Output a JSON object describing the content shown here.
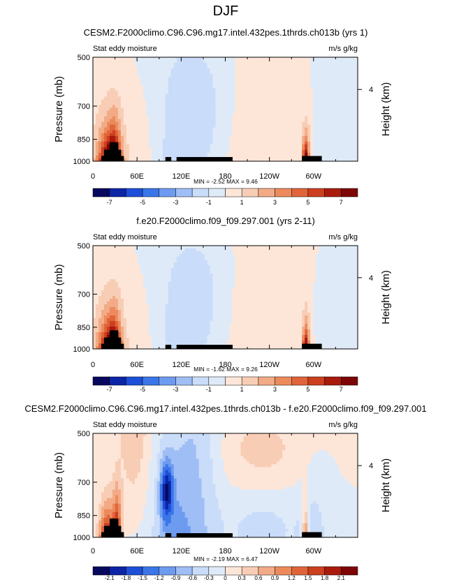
{
  "figure": {
    "title": "DJF"
  },
  "colors": {
    "neg": [
      "#08085e",
      "#0c24a6",
      "#1d4fd8",
      "#3a76e8",
      "#6d9bf0",
      "#9fbef5",
      "#c9dcf9",
      "#dfeaf8"
    ],
    "pos": [
      "#fde6d8",
      "#f8cdb5",
      "#f2ab86",
      "#ec8a5c",
      "#e0643a",
      "#cc3f1f",
      "#a91a0d",
      "#7d0505"
    ],
    "topography": "#000000"
  },
  "chart_data": [
    {
      "type": "heatmap",
      "title": "CESM2.F2000climo.C96.C96.mg17.intel.432pes.1thrds.ch013b (yrs 1)",
      "left_label": "Stat eddy moisture",
      "right_label": "m/s g/kg",
      "ylabel": "Pressure (mb)",
      "y2label": "Height (km)",
      "y_ticks": [
        "500",
        "700",
        "850",
        "1000"
      ],
      "y2_ticks": [
        "4"
      ],
      "x_ticks": [
        "0",
        "60E",
        "120E",
        "180",
        "120W",
        "60W"
      ],
      "stats": "MIN = -2.52  MAX = 9.46",
      "colorbar": {
        "labels": [
          "-7",
          "-5",
          "-3",
          "-1",
          "1",
          "3",
          "5",
          "7"
        ],
        "levels": [
          -8,
          -7,
          -6,
          -5,
          -4,
          -3,
          -2,
          -1,
          0,
          1,
          2,
          3,
          4,
          5,
          6,
          7,
          8
        ]
      },
      "min": -2.52,
      "max": 9.46
    },
    {
      "type": "heatmap",
      "title": "f.e20.F2000climo.f09_f09.297.001 (yrs 2-11)",
      "left_label": "Stat eddy moisture",
      "right_label": "m/s g/kg",
      "ylabel": "Pressure (mb)",
      "y2label": "Height (km)",
      "y_ticks": [
        "500",
        "700",
        "850",
        "1000"
      ],
      "y2_ticks": [
        "4"
      ],
      "x_ticks": [
        "0",
        "60E",
        "120E",
        "180",
        "120W",
        "60W"
      ],
      "stats": "MIN = -1.62  MAX = 9.26",
      "colorbar": {
        "labels": [
          "-7",
          "-5",
          "-3",
          "-1",
          "1",
          "3",
          "5",
          "7"
        ],
        "levels": [
          -8,
          -7,
          -6,
          -5,
          -4,
          -3,
          -2,
          -1,
          0,
          1,
          2,
          3,
          4,
          5,
          6,
          7,
          8
        ]
      },
      "min": -1.62,
      "max": 9.26
    },
    {
      "type": "heatmap",
      "title": "CESM2.F2000climo.C96.C96.mg17.intel.432pes.1thrds.ch013b - f.e20.F2000climo.f09_f09.297.001",
      "left_label": "Stat eddy moisture",
      "right_label": "m/s g/kg",
      "ylabel": "Pressure (mb)",
      "y2label": "Height (km)",
      "y_ticks": [
        "500",
        "700",
        "850",
        "1000"
      ],
      "y2_ticks": [
        "4"
      ],
      "x_ticks": [
        "0",
        "60E",
        "120E",
        "180",
        "120W",
        "60W"
      ],
      "stats": "MIN = -2.19  MAX = 6.47",
      "colorbar": {
        "labels": [
          "-2.1",
          "-1.8",
          "-1.5",
          "-1.2",
          "-0.9",
          "-0.6",
          "-0.3",
          "0",
          "0.3",
          "0.6",
          "0.9",
          "1.2",
          "1.5",
          "1.8",
          "2.1"
        ],
        "levels": [
          -2.4,
          -2.1,
          -1.8,
          -1.5,
          -1.2,
          -0.9,
          -0.6,
          -0.3,
          0,
          0.3,
          0.6,
          0.9,
          1.2,
          1.5,
          1.8,
          2.1,
          2.4
        ]
      },
      "min": -2.19,
      "max": 6.47
    }
  ]
}
